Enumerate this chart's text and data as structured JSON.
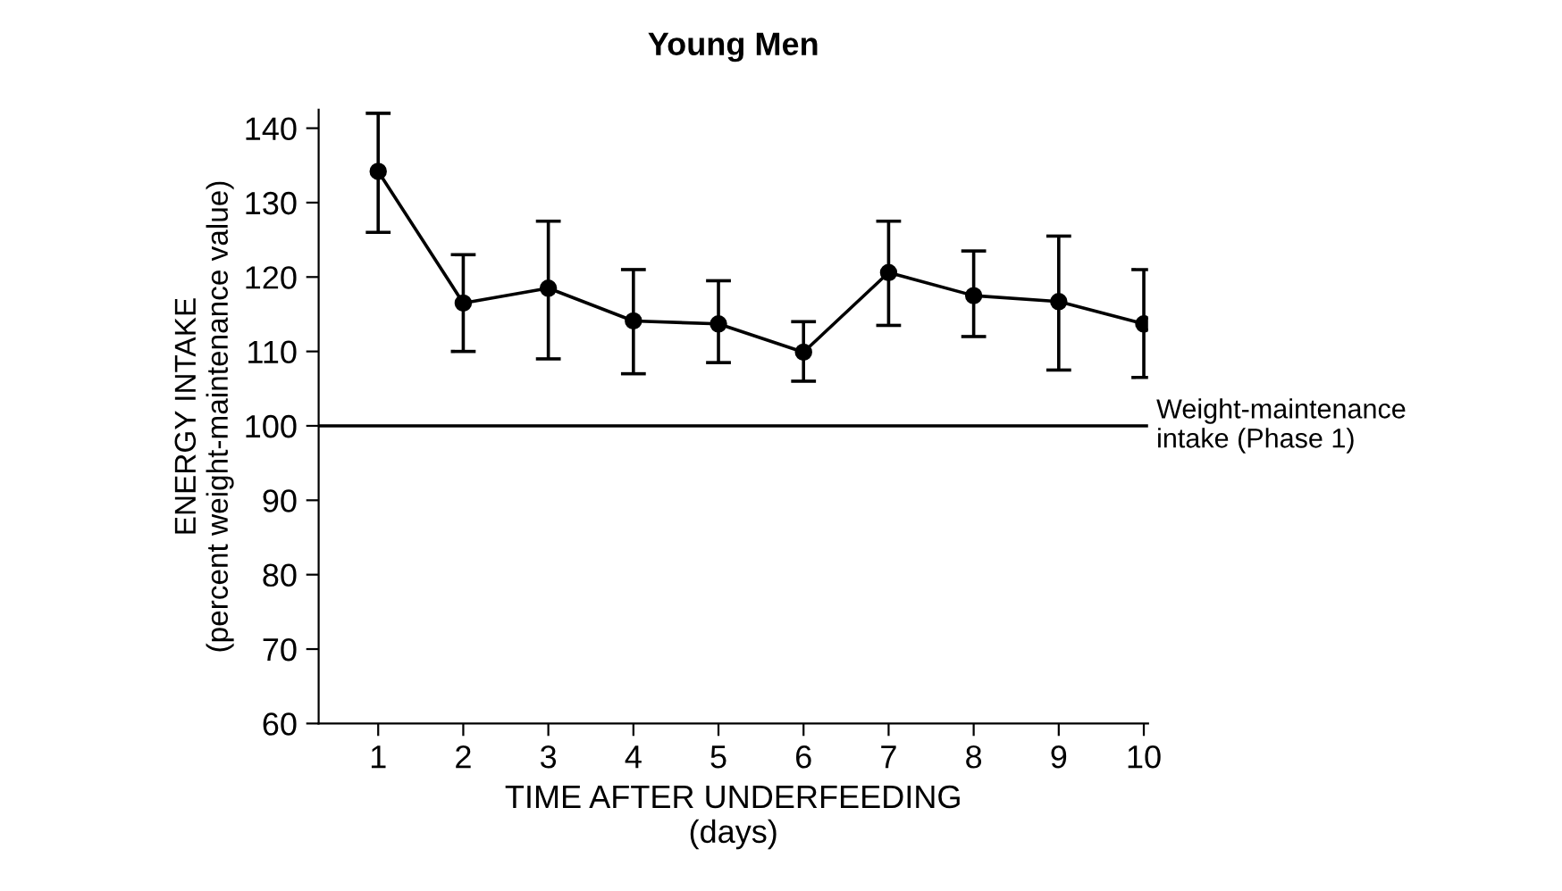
{
  "chart_data": {
    "type": "line",
    "title": "Young Men",
    "xlabel": "TIME AFTER UNDERFEEDING\n(days)",
    "ylabel": "ENERGY INTAKE\n(percent weight-maintenance value)",
    "x": [
      1,
      2,
      3,
      4,
      5,
      6,
      7,
      8,
      9,
      10
    ],
    "series": [
      {
        "color": "#000000",
        "values": [
          134.2,
          116.5,
          118.5,
          114.1,
          113.7,
          109.9,
          120.6,
          117.5,
          116.7,
          113.7
        ],
        "errors": [
          [
            126,
            142
          ],
          [
            110,
            123
          ],
          [
            109,
            127.5
          ],
          [
            107,
            121
          ],
          [
            108.5,
            119.5
          ],
          [
            106,
            114
          ],
          [
            113.5,
            127.5
          ],
          [
            112,
            123.5
          ],
          [
            107.5,
            125.5
          ],
          [
            106.5,
            121
          ]
        ]
      }
    ],
    "xlim": [
      0.3,
      10.05
    ],
    "ylim": [
      60,
      142.5
    ],
    "xticks": [
      1,
      2,
      3,
      4,
      5,
      6,
      7,
      8,
      9,
      10
    ],
    "yticks": [
      60,
      70,
      80,
      90,
      100,
      110,
      120,
      130,
      140
    ],
    "ref_lines": [
      {
        "axis": "y",
        "value": 100,
        "label": "Weight-maintenance\nintake (Phase 1)",
        "color": "#000000"
      }
    ],
    "marker": "circle",
    "line_style": "solid",
    "grid": false,
    "legend": false
  }
}
